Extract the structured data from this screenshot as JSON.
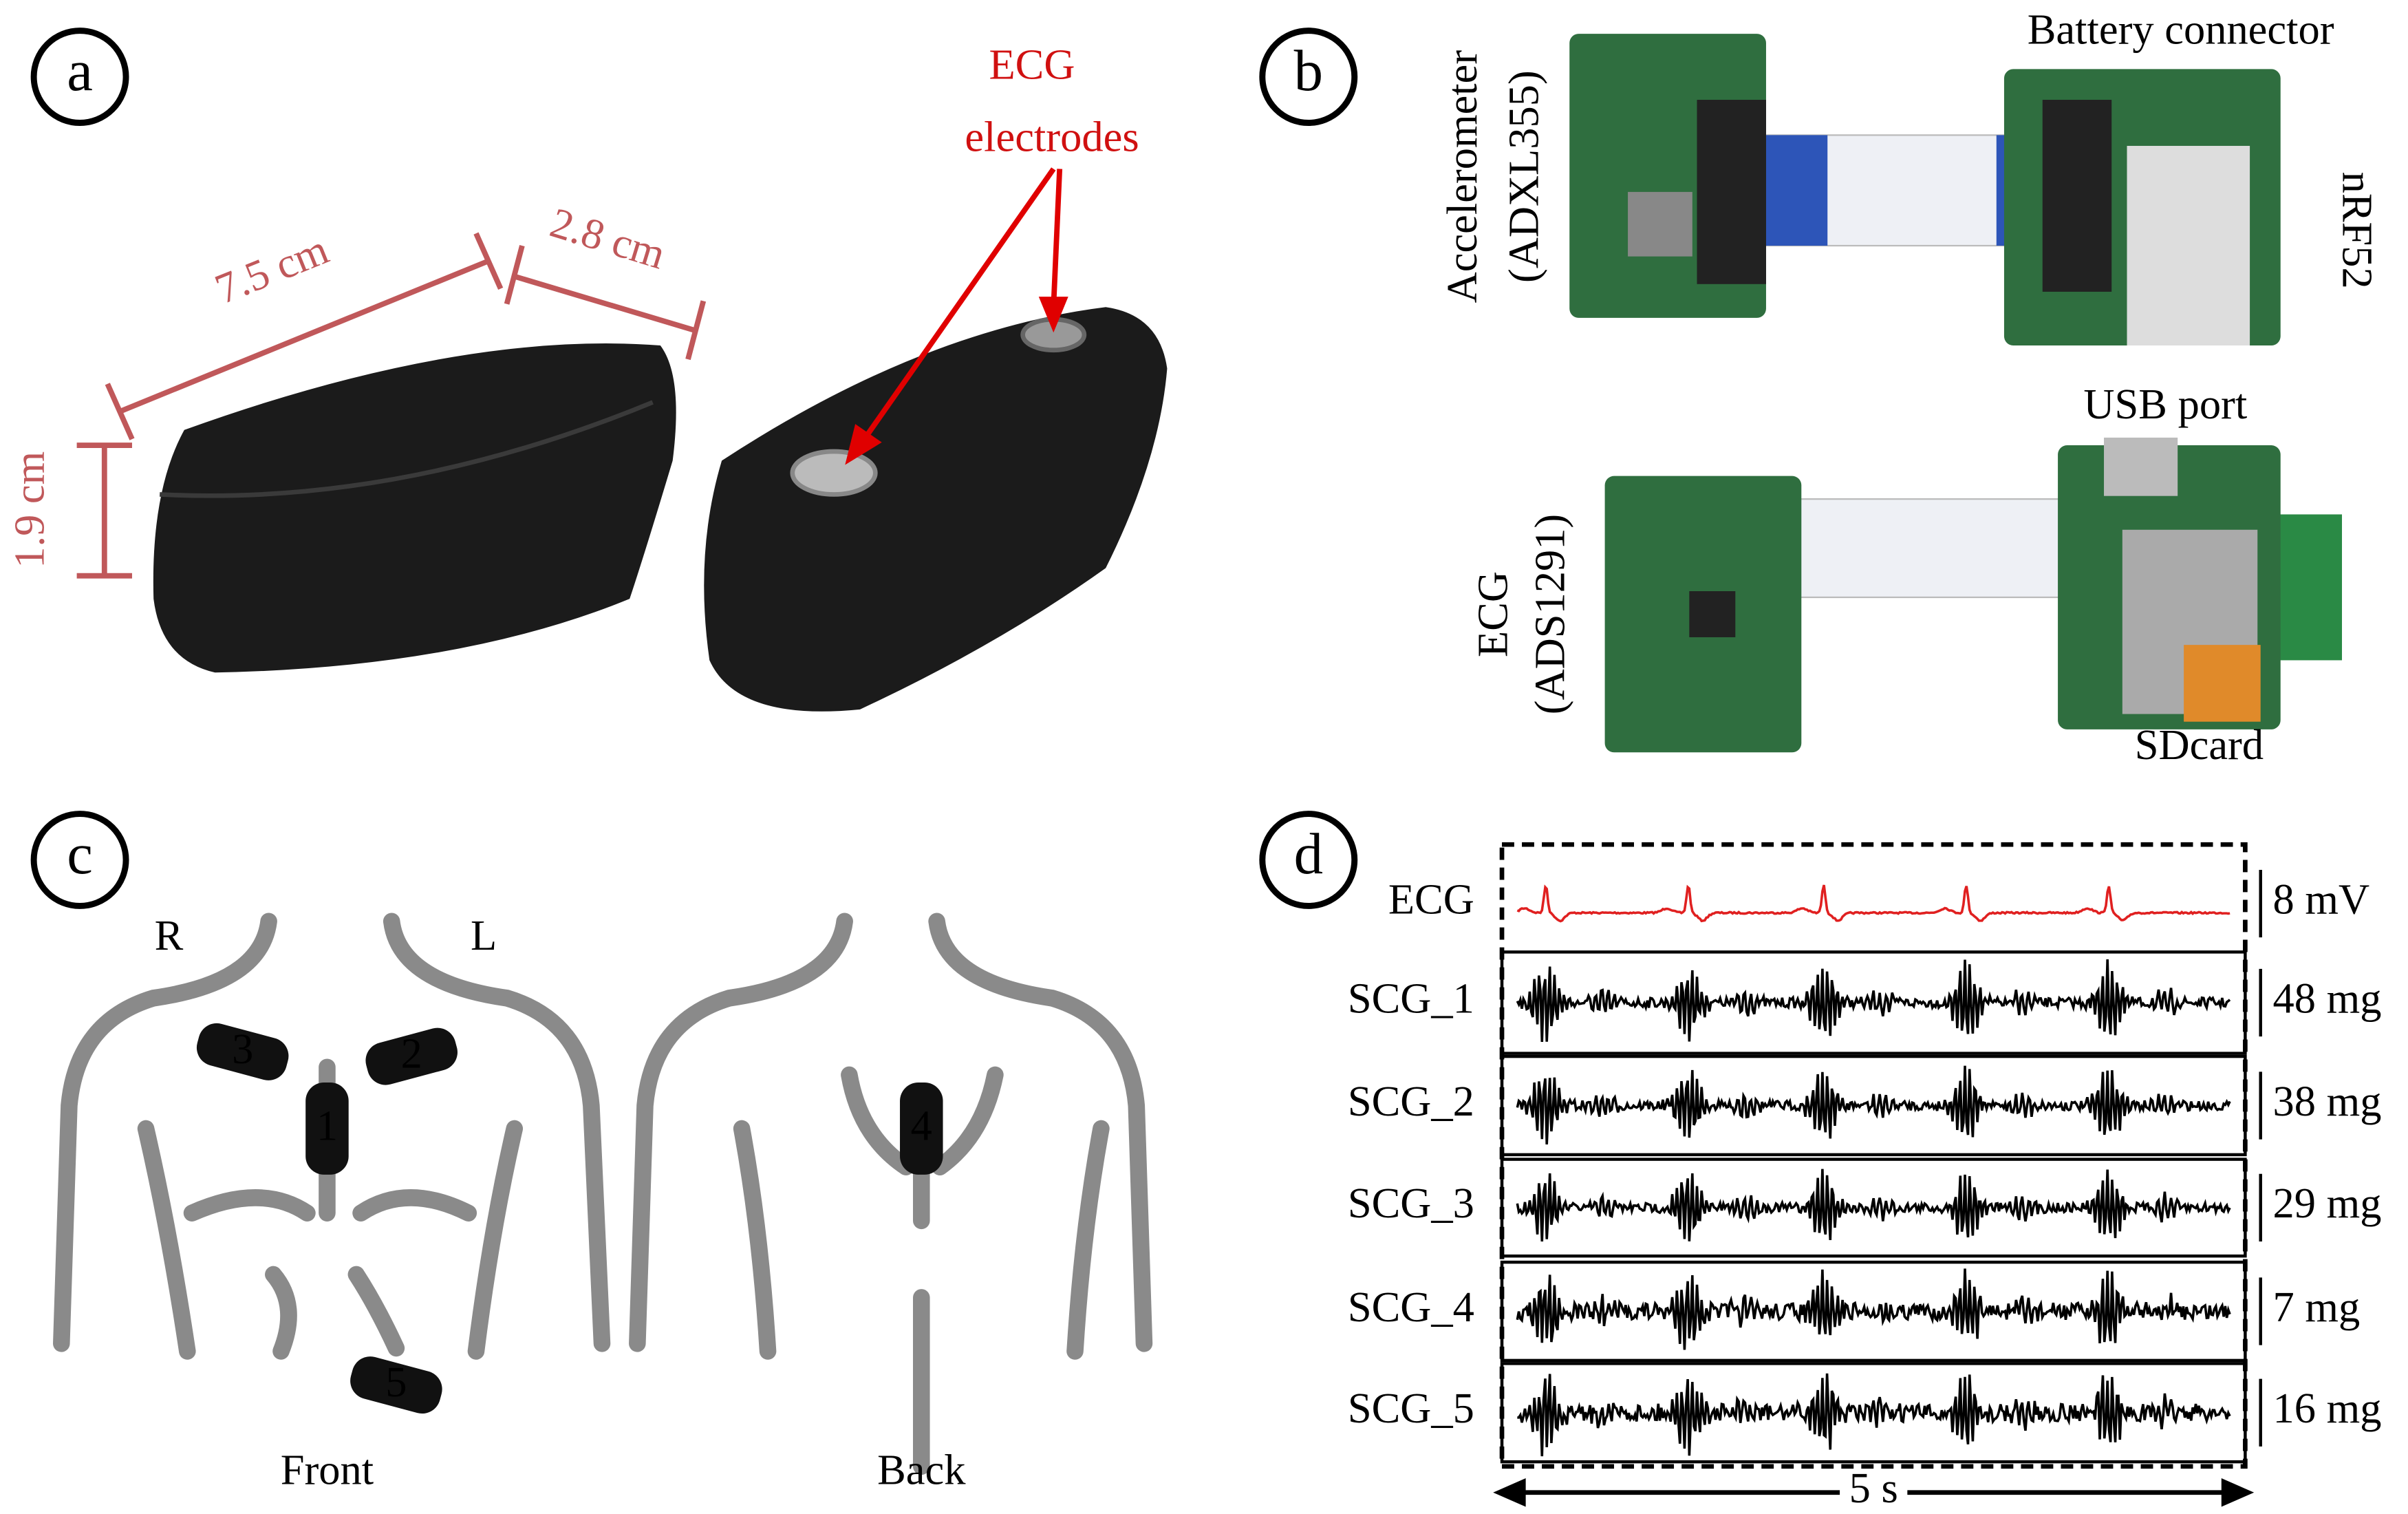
{
  "panel_a": {
    "label": "a",
    "electrodes": [
      "ECG",
      "electrodes"
    ],
    "length": "7.5 cm",
    "width": "2.8 cm",
    "height": "1.9 cm"
  },
  "panel_b": {
    "label": "b",
    "accelerometer": [
      "Accelerometer",
      "(ADXL355)"
    ],
    "battery": "Battery connector",
    "mcu": "nRF52",
    "usb": "USB port",
    "ecg": [
      "ECG",
      "(ADS1291)"
    ],
    "sdcard": "SDcard"
  },
  "panel_c": {
    "label": "c",
    "right": "R",
    "left": "L",
    "front": "Front",
    "back": "Back",
    "sensors": [
      "1",
      "2",
      "3",
      "4",
      "5"
    ]
  },
  "panel_d": {
    "label": "d",
    "time": "5 s",
    "signals": [
      {
        "name": "ECG",
        "scale": "8 mV"
      },
      {
        "name": "SCG_1",
        "scale": "48 mg"
      },
      {
        "name": "SCG_2",
        "scale": "38 mg"
      },
      {
        "name": "SCG_3",
        "scale": "29 mg"
      },
      {
        "name": "SCG_4",
        "scale": "7 mg"
      },
      {
        "name": "SCG_5",
        "scale": "16 mg"
      }
    ]
  }
}
